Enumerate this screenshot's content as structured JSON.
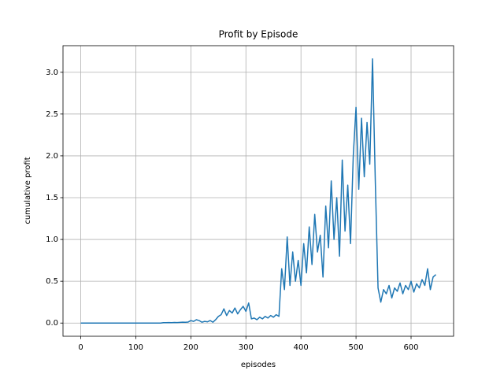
{
  "chart_data": {
    "type": "line",
    "title": "Profit by Episode",
    "xlabel": "episodes",
    "ylabel": "cumulative profit",
    "x": [
      0,
      5,
      10,
      15,
      20,
      25,
      30,
      35,
      40,
      45,
      50,
      55,
      60,
      65,
      70,
      75,
      80,
      85,
      90,
      95,
      100,
      105,
      110,
      115,
      120,
      125,
      130,
      135,
      140,
      145,
      150,
      155,
      160,
      165,
      170,
      175,
      180,
      185,
      190,
      195,
      200,
      205,
      210,
      215,
      220,
      225,
      230,
      235,
      240,
      245,
      250,
      255,
      260,
      265,
      270,
      275,
      280,
      285,
      290,
      295,
      300,
      305,
      310,
      315,
      320,
      325,
      330,
      335,
      340,
      345,
      350,
      355,
      360,
      365,
      370,
      375,
      380,
      385,
      390,
      395,
      400,
      405,
      410,
      415,
      420,
      425,
      430,
      435,
      440,
      445,
      450,
      455,
      460,
      465,
      470,
      475,
      480,
      485,
      490,
      495,
      500,
      505,
      510,
      515,
      520,
      525,
      530,
      535,
      540,
      545,
      550,
      555,
      560,
      565,
      570,
      575,
      580,
      585,
      590,
      595,
      600,
      605,
      610,
      615,
      620,
      625,
      630,
      635,
      640,
      645
    ],
    "series": [
      {
        "color": "#1f77b4",
        "values": [
          0,
          0,
          0,
          0,
          0,
          0,
          0,
          0,
          0,
          0,
          0,
          0,
          0,
          0,
          0,
          0,
          0,
          0,
          0,
          0,
          0,
          0,
          0,
          0,
          0,
          0,
          0,
          0,
          0,
          0,
          0.005,
          0.004,
          0.006,
          0.005,
          0.007,
          0.006,
          0.008,
          0.01,
          0.009,
          0.012,
          0.03,
          0.02,
          0.04,
          0.03,
          0.01,
          0.02,
          0.015,
          0.03,
          0.01,
          0.04,
          0.08,
          0.1,
          0.17,
          0.09,
          0.15,
          0.12,
          0.18,
          0.11,
          0.16,
          0.2,
          0.14,
          0.24,
          0.05,
          0.06,
          0.04,
          0.07,
          0.05,
          0.08,
          0.06,
          0.09,
          0.07,
          0.1,
          0.08,
          0.65,
          0.4,
          1.03,
          0.45,
          0.85,
          0.5,
          0.75,
          0.45,
          0.95,
          0.6,
          1.15,
          0.7,
          1.3,
          0.85,
          1.05,
          0.55,
          1.4,
          0.9,
          1.7,
          1.0,
          1.5,
          0.8,
          1.95,
          1.1,
          1.65,
          0.95,
          2.0,
          2.58,
          1.6,
          2.45,
          1.75,
          2.4,
          1.9,
          3.16,
          1.7,
          0.42,
          0.25,
          0.4,
          0.35,
          0.45,
          0.3,
          0.42,
          0.38,
          0.48,
          0.35,
          0.45,
          0.4,
          0.5,
          0.37,
          0.47,
          0.42,
          0.52,
          0.45,
          0.65,
          0.4,
          0.55,
          0.58
        ]
      }
    ],
    "xlim": [
      -32.25,
      677.25
    ],
    "ylim": [
      -0.158,
      3.318
    ],
    "xticks": [
      0,
      100,
      200,
      300,
      400,
      500,
      600
    ],
    "yticks": [
      {
        "value": 0,
        "label": "0.0"
      },
      {
        "value": 0.5,
        "label": "0.5"
      },
      {
        "value": 1,
        "label": "1.0"
      },
      {
        "value": 1.5,
        "label": "1.5"
      },
      {
        "value": 2,
        "label": "2.0"
      },
      {
        "value": 2.5,
        "label": "2.5"
      },
      {
        "value": 3,
        "label": "3.0"
      }
    ],
    "grid": true
  }
}
